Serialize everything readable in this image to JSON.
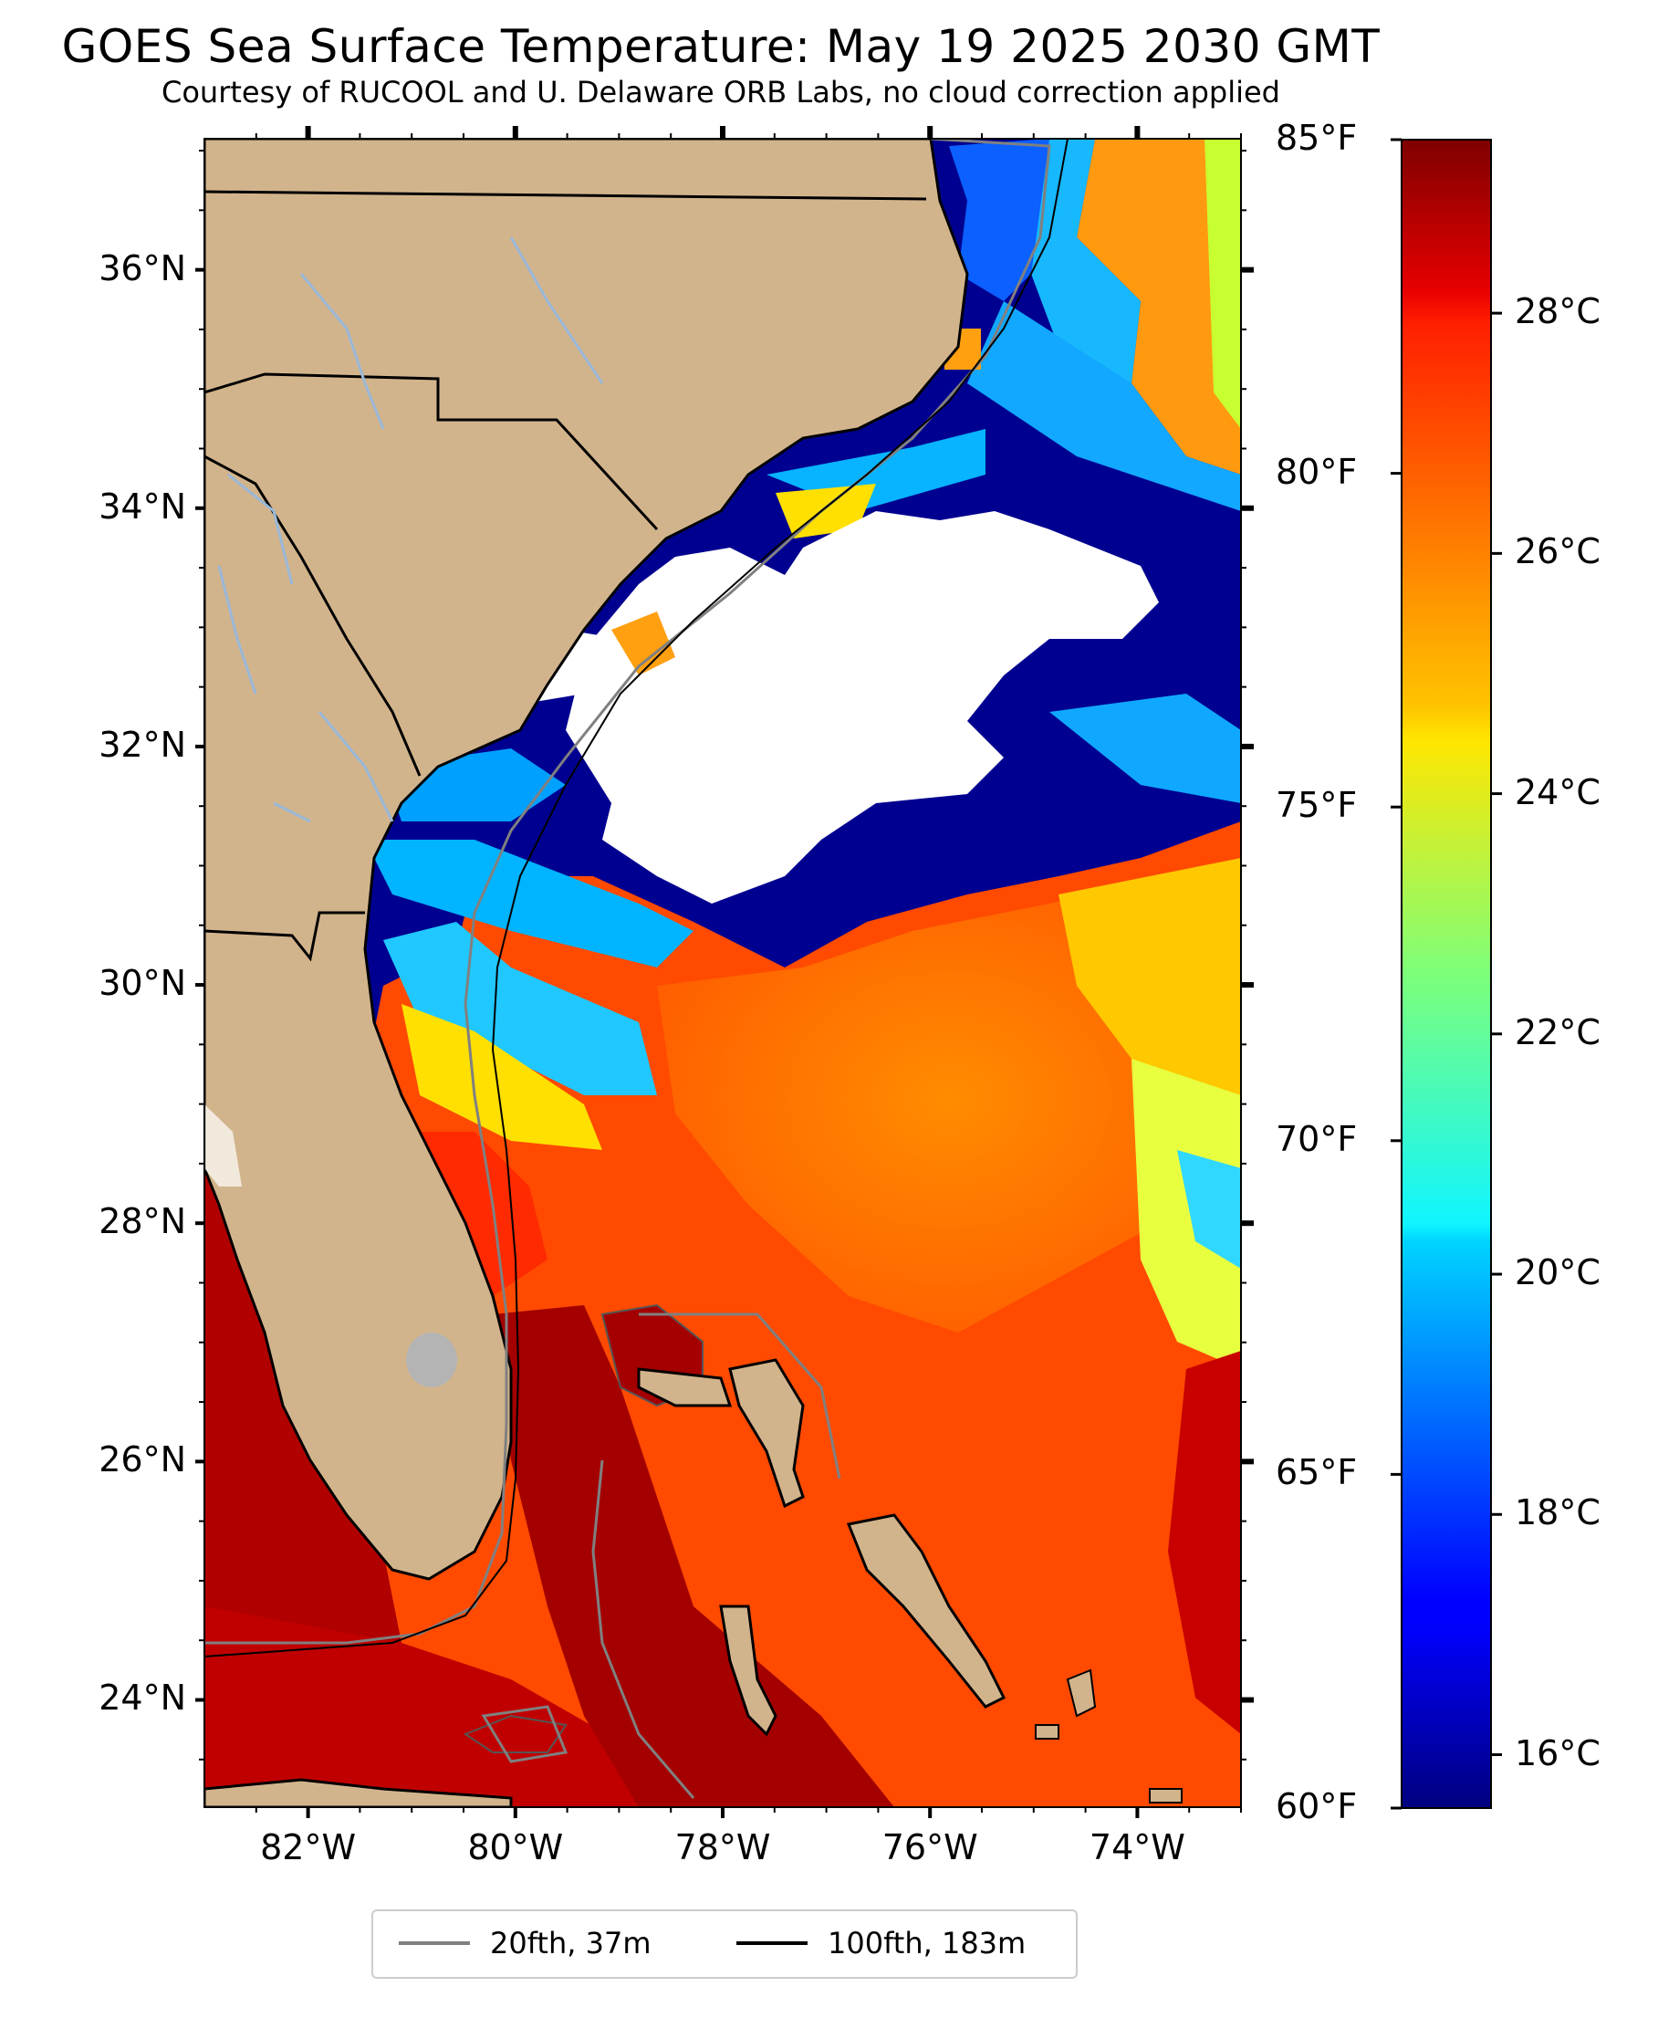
{
  "title": "GOES Sea Surface Temperature: May 19 2025 2030 GMT",
  "subtitle": "Courtesy of RUCOOL and U. Delaware ORB Labs, no cloud correction applied",
  "map": {
    "lat_range": [
      23.1,
      37.1
    ],
    "lon_range": [
      -83.0,
      -73.0
    ],
    "lat_ticks": [
      {
        "value": 36,
        "label": "36°N"
      },
      {
        "value": 34,
        "label": "34°N"
      },
      {
        "value": 32,
        "label": "32°N"
      },
      {
        "value": 30,
        "label": "30°N"
      },
      {
        "value": 28,
        "label": "28°N"
      },
      {
        "value": 26,
        "label": "26°N"
      },
      {
        "value": 24,
        "label": "24°N"
      }
    ],
    "lon_ticks": [
      {
        "value": -82,
        "label": "82°W"
      },
      {
        "value": -80,
        "label": "80°W"
      },
      {
        "value": -78,
        "label": "78°W"
      },
      {
        "value": -76,
        "label": "76°W"
      },
      {
        "value": -74,
        "label": "74°W"
      }
    ],
    "colors": {
      "land": "#d2b48c",
      "cloud": "#ffffff",
      "river": "#9ab8d8",
      "lake": "#b4b4b4",
      "border": "#000000"
    }
  },
  "colorbar": {
    "colormap": "jet",
    "range_f": [
      60,
      85
    ],
    "fahrenheit_ticks": [
      {
        "value": 85,
        "label": "85°F"
      },
      {
        "value": 80,
        "label": "80°F"
      },
      {
        "value": 75,
        "label": "75°F"
      },
      {
        "value": 70,
        "label": "70°F"
      },
      {
        "value": 65,
        "label": "65°F"
      },
      {
        "value": 60,
        "label": "60°F"
      }
    ],
    "celsius_ticks": [
      {
        "value": 28,
        "label": "28°C"
      },
      {
        "value": 26,
        "label": "26°C"
      },
      {
        "value": 24,
        "label": "24°C"
      },
      {
        "value": 22,
        "label": "22°C"
      },
      {
        "value": 20,
        "label": "20°C"
      },
      {
        "value": 18,
        "label": "18°C"
      },
      {
        "value": 16,
        "label": "16°C"
      }
    ]
  },
  "legend": {
    "items": [
      {
        "label": "20fth, 37m",
        "color": "#808080"
      },
      {
        "label": "100fth, 183m",
        "color": "#000000"
      }
    ]
  }
}
